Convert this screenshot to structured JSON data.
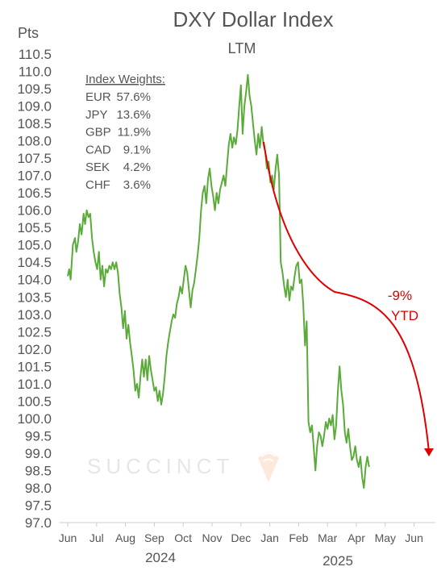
{
  "chart_data": {
    "type": "line",
    "title": "DXY Dollar Index",
    "subtitle": "LTM",
    "ylabel": "Pts",
    "ylim": [
      97.0,
      110.5
    ],
    "yticks": [
      "110.5",
      "110.0",
      "109.5",
      "109.0",
      "108.5",
      "108.0",
      "107.5",
      "107.0",
      "106.5",
      "106.0",
      "105.5",
      "105.0",
      "104.5",
      "104.0",
      "103.5",
      "103.0",
      "102.5",
      "102.0",
      "101.5",
      "101.0",
      "100.5",
      "100.0",
      "99.5",
      "99.0",
      "98.5",
      "98.0",
      "97.5",
      "97.0"
    ],
    "xticks": [
      "Jun",
      "Jul",
      "Aug",
      "Sep",
      "Oct",
      "Nov",
      "Dec",
      "Jan",
      "Feb",
      "Mar",
      "Apr",
      "May",
      "Jun"
    ],
    "years": [
      "2024",
      "2025"
    ],
    "series": [
      {
        "color": "#5aab3a",
        "values": [
          [
            0.0,
            104.1
          ],
          [
            0.05,
            104.3
          ],
          [
            0.1,
            104.0
          ],
          [
            0.18,
            105.0
          ],
          [
            0.25,
            105.2
          ],
          [
            0.3,
            104.8
          ],
          [
            0.36,
            105.1
          ],
          [
            0.42,
            105.6
          ],
          [
            0.48,
            105.3
          ],
          [
            0.55,
            105.9
          ],
          [
            0.6,
            105.6
          ],
          [
            0.66,
            106.0
          ],
          [
            0.72,
            105.8
          ],
          [
            0.78,
            105.9
          ],
          [
            0.84,
            105.2
          ],
          [
            0.9,
            104.8
          ],
          [
            0.96,
            104.5
          ],
          [
            1.02,
            104.3
          ],
          [
            1.08,
            104.8
          ],
          [
            1.14,
            104.0
          ],
          [
            1.2,
            104.4
          ],
          [
            1.26,
            103.8
          ],
          [
            1.32,
            104.3
          ],
          [
            1.38,
            104.2
          ],
          [
            1.44,
            104.4
          ],
          [
            1.5,
            104.3
          ],
          [
            1.56,
            104.5
          ],
          [
            1.62,
            104.3
          ],
          [
            1.68,
            104.5
          ],
          [
            1.74,
            104.2
          ],
          [
            1.8,
            103.6
          ],
          [
            1.86,
            103.2
          ],
          [
            1.92,
            102.6
          ],
          [
            1.98,
            103.1
          ],
          [
            2.04,
            102.3
          ],
          [
            2.1,
            102.7
          ],
          [
            2.16,
            102.2
          ],
          [
            2.22,
            101.8
          ],
          [
            2.28,
            101.4
          ],
          [
            2.34,
            100.8
          ],
          [
            2.4,
            101.0
          ],
          [
            2.46,
            100.6
          ],
          [
            2.52,
            101.2
          ],
          [
            2.58,
            101.7
          ],
          [
            2.64,
            101.2
          ],
          [
            2.7,
            101.7
          ],
          [
            2.76,
            101.1
          ],
          [
            2.82,
            101.8
          ],
          [
            2.88,
            101.4
          ],
          [
            2.94,
            101.1
          ],
          [
            3.0,
            100.8
          ],
          [
            3.06,
            100.9
          ],
          [
            3.12,
            100.5
          ],
          [
            3.18,
            100.8
          ],
          [
            3.24,
            100.4
          ],
          [
            3.3,
            100.7
          ],
          [
            3.36,
            101.2
          ],
          [
            3.42,
            101.8
          ],
          [
            3.48,
            102.2
          ],
          [
            3.54,
            102.5
          ],
          [
            3.6,
            102.8
          ],
          [
            3.66,
            103.0
          ],
          [
            3.72,
            102.9
          ],
          [
            3.78,
            103.3
          ],
          [
            3.84,
            103.5
          ],
          [
            3.9,
            103.8
          ],
          [
            3.96,
            103.6
          ],
          [
            4.02,
            104.0
          ],
          [
            4.08,
            104.4
          ],
          [
            4.14,
            104.2
          ],
          [
            4.2,
            103.7
          ],
          [
            4.26,
            103.2
          ],
          [
            4.32,
            103.7
          ],
          [
            4.38,
            103.9
          ],
          [
            4.44,
            104.3
          ],
          [
            4.5,
            104.7
          ],
          [
            4.56,
            105.2
          ],
          [
            4.62,
            106.0
          ],
          [
            4.68,
            106.5
          ],
          [
            4.74,
            106.7
          ],
          [
            4.8,
            106.2
          ],
          [
            4.86,
            106.9
          ],
          [
            4.92,
            107.2
          ],
          [
            4.98,
            106.7
          ],
          [
            5.04,
            106.4
          ],
          [
            5.1,
            106.0
          ],
          [
            5.16,
            106.5
          ],
          [
            5.22,
            106.2
          ],
          [
            5.28,
            106.6
          ],
          [
            5.34,
            106.8
          ],
          [
            5.4,
            107.0
          ],
          [
            5.46,
            106.7
          ],
          [
            5.52,
            107.3
          ],
          [
            5.58,
            107.9
          ],
          [
            5.64,
            108.2
          ],
          [
            5.7,
            107.8
          ],
          [
            5.76,
            108.1
          ],
          [
            5.82,
            107.9
          ],
          [
            5.88,
            108.3
          ],
          [
            5.94,
            109.0
          ],
          [
            6.0,
            109.6
          ],
          [
            6.06,
            108.2
          ],
          [
            6.12,
            109.0
          ],
          [
            6.18,
            109.4
          ],
          [
            6.24,
            109.9
          ],
          [
            6.3,
            109.3
          ],
          [
            6.36,
            109.0
          ],
          [
            6.42,
            108.5
          ],
          [
            6.48,
            108.0
          ],
          [
            6.54,
            107.6
          ],
          [
            6.6,
            108.2
          ],
          [
            6.66,
            107.8
          ],
          [
            6.72,
            108.4
          ],
          [
            6.78,
            107.9
          ],
          [
            6.84,
            107.7
          ],
          [
            6.9,
            107.2
          ],
          [
            6.96,
            107.4
          ],
          [
            7.02,
            106.8
          ],
          [
            7.08,
            107.0
          ],
          [
            7.14,
            106.6
          ],
          [
            7.2,
            107.2
          ],
          [
            7.26,
            107.6
          ],
          [
            7.32,
            107.0
          ],
          [
            7.38,
            104.5
          ],
          [
            7.44,
            104.2
          ],
          [
            7.5,
            103.8
          ],
          [
            7.56,
            103.5
          ],
          [
            7.62,
            104.0
          ],
          [
            7.68,
            103.4
          ],
          [
            7.74,
            103.8
          ],
          [
            7.8,
            103.7
          ],
          [
            7.86,
            104.1
          ],
          [
            7.92,
            104.4
          ],
          [
            7.98,
            104.5
          ],
          [
            8.04,
            103.9
          ],
          [
            8.1,
            104.0
          ],
          [
            8.16,
            103.3
          ],
          [
            8.22,
            102.1
          ],
          [
            8.28,
            102.8
          ],
          [
            8.34,
            99.9
          ],
          [
            8.4,
            99.6
          ],
          [
            8.46,
            99.8
          ],
          [
            8.52,
            99.2
          ],
          [
            8.58,
            98.5
          ],
          [
            8.64,
            99.2
          ],
          [
            8.7,
            99.6
          ],
          [
            8.76,
            99.5
          ],
          [
            8.82,
            99.2
          ],
          [
            8.88,
            99.5
          ],
          [
            8.94,
            99.9
          ],
          [
            9.0,
            99.7
          ],
          [
            9.06,
            100.0
          ],
          [
            9.12,
            99.8
          ],
          [
            9.18,
            100.1
          ],
          [
            9.24,
            99.4
          ],
          [
            9.3,
            99.8
          ],
          [
            9.36,
            100.8
          ],
          [
            9.42,
            101.5
          ],
          [
            9.48,
            100.8
          ],
          [
            9.54,
            100.4
          ],
          [
            9.6,
            99.6
          ],
          [
            9.66,
            99.3
          ],
          [
            9.72,
            99.7
          ],
          [
            9.78,
            99.2
          ],
          [
            9.84,
            98.8
          ],
          [
            9.9,
            98.9
          ],
          [
            9.96,
            99.2
          ],
          [
            10.02,
            98.8
          ],
          [
            10.08,
            98.6
          ],
          [
            10.14,
            98.9
          ],
          [
            10.2,
            98.3
          ],
          [
            10.26,
            98.0
          ],
          [
            10.32,
            98.6
          ],
          [
            10.38,
            98.9
          ],
          [
            10.44,
            98.6
          ]
        ]
      }
    ],
    "legend": {
      "title": "Index Weights:",
      "items": [
        {
          "code": "EUR",
          "weight": "57.6%"
        },
        {
          "code": "JPY",
          "weight": "13.6%"
        },
        {
          "code": "GBP",
          "weight": "11.9%"
        },
        {
          "code": "CAD",
          "weight": "9.1%"
        },
        {
          "code": "SEK",
          "weight": "4.2%"
        },
        {
          "code": "CHF",
          "weight": "3.6%"
        }
      ]
    },
    "annotation": {
      "line1": "-9%",
      "line2": "YTD",
      "color": "#e00000"
    },
    "watermark": "SUCCINCT",
    "grid": false
  }
}
